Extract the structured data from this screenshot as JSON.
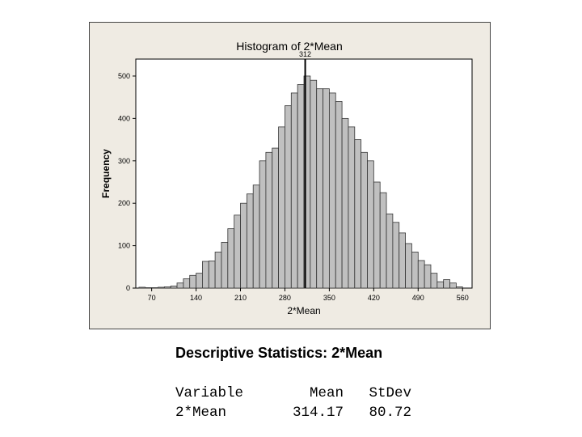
{
  "chart_data": {
    "type": "bar",
    "title": "Histogram of 2*Mean",
    "xlabel": "2*Mean",
    "ylabel": "Frequency",
    "xlim": [
      45,
      575
    ],
    "ylim": [
      0,
      540
    ],
    "x_ticks": [
      70,
      140,
      210,
      280,
      350,
      420,
      490,
      560
    ],
    "x_tick_labels": [
      "70",
      "140",
      "210",
      "280",
      "350",
      "420",
      "490",
      "560"
    ],
    "y_ticks": [
      0,
      100,
      200,
      300,
      400,
      500
    ],
    "y_tick_labels": [
      "0",
      "100",
      "200",
      "300",
      "400",
      "500"
    ],
    "bin_width": 10,
    "bin_starts": [
      50,
      60,
      70,
      80,
      90,
      100,
      110,
      120,
      130,
      140,
      150,
      160,
      170,
      180,
      190,
      200,
      210,
      220,
      230,
      240,
      250,
      260,
      270,
      280,
      290,
      300,
      310,
      320,
      330,
      340,
      350,
      360,
      370,
      380,
      390,
      400,
      410,
      420,
      430,
      440,
      450,
      460,
      470,
      480,
      490,
      500,
      510,
      520,
      530,
      540,
      550
    ],
    "values": [
      2,
      1,
      1,
      2,
      3,
      5,
      12,
      22,
      30,
      35,
      63,
      64,
      85,
      108,
      140,
      172,
      200,
      222,
      243,
      300,
      320,
      330,
      380,
      430,
      460,
      480,
      500,
      490,
      470,
      470,
      460,
      440,
      400,
      380,
      350,
      320,
      300,
      250,
      225,
      175,
      155,
      130,
      105,
      85,
      65,
      55,
      35,
      15,
      20,
      12,
      3
    ],
    "reference_line": {
      "value": 312,
      "label": "312"
    }
  },
  "stats": {
    "title": "Descriptive Statistics: 2*Mean",
    "headers": [
      "Variable",
      "Mean",
      "StDev"
    ],
    "row": [
      "2*Mean",
      "314.17",
      "80.72"
    ]
  },
  "colors": {
    "frame_bg": "#efebe3",
    "plot_bg": "#ffffff",
    "bar_fill": "#c0c0c0",
    "bar_stroke": "#333333",
    "ref_line": "#000000"
  }
}
